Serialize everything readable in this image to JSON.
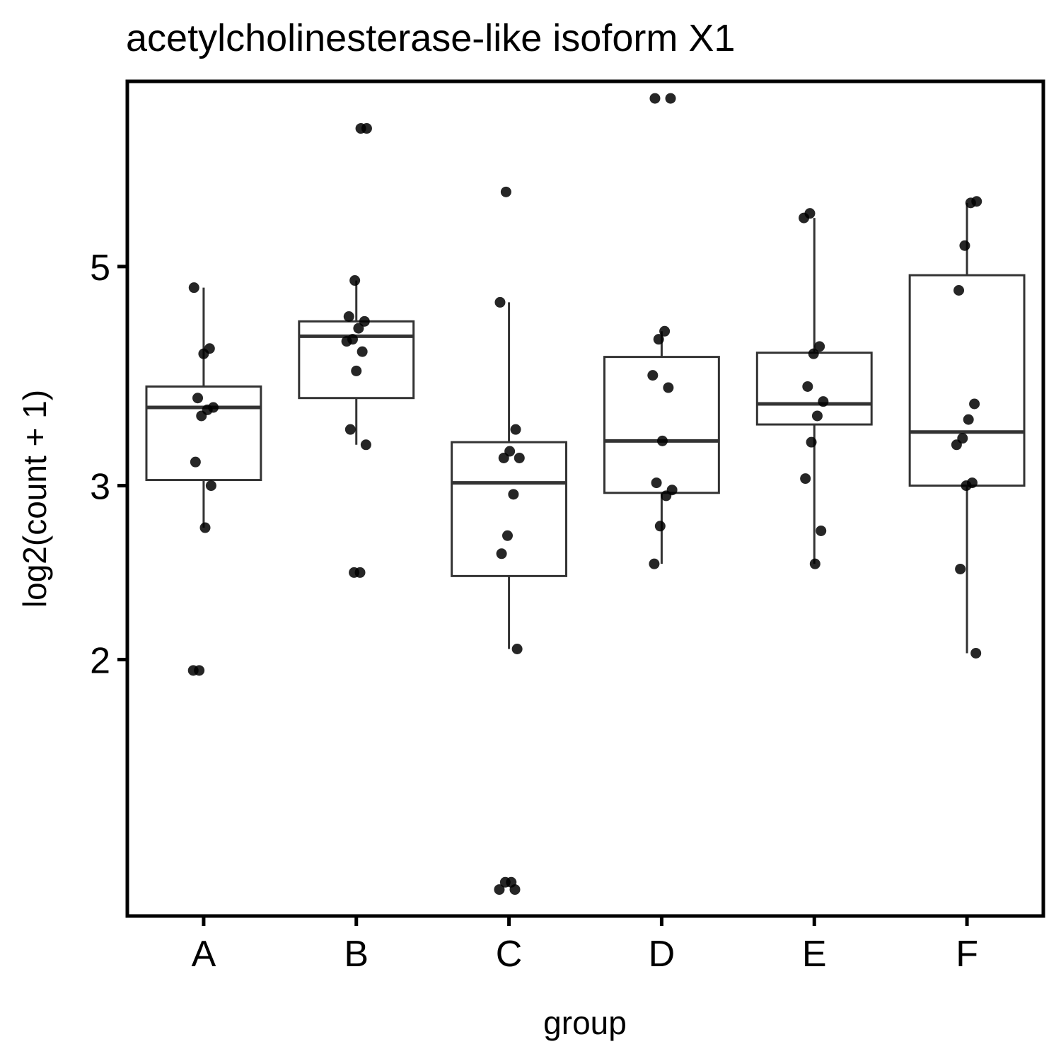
{
  "chart_data": {
    "type": "box",
    "title": "acetylcholinesterase-like isoform X1",
    "xlabel": "group",
    "ylabel": "log2(count + 1)",
    "y_scale": "log2",
    "ylim": [
      1.1,
      7.7
    ],
    "yticks": [
      2,
      3,
      5
    ],
    "grid": false,
    "categories": [
      "A",
      "B",
      "C",
      "D",
      "E",
      "F"
    ],
    "boxes": [
      {
        "group": "A",
        "whisker_low": 2.72,
        "q1": 3.04,
        "median": 3.6,
        "q3": 3.78,
        "whisker_high": 4.76
      },
      {
        "group": "B",
        "whisker_low": 3.3,
        "q1": 3.68,
        "median": 4.25,
        "q3": 4.4,
        "whisker_high": 4.84
      },
      {
        "group": "C",
        "whisker_low": 2.05,
        "q1": 2.43,
        "median": 3.02,
        "q3": 3.32,
        "whisker_high": 4.6
      },
      {
        "group": "D",
        "whisker_low": 2.5,
        "q1": 2.95,
        "median": 3.33,
        "q3": 4.05,
        "whisker_high": 4.3
      },
      {
        "group": "E",
        "whisker_low": 2.5,
        "q1": 3.46,
        "median": 3.63,
        "q3": 4.09,
        "whisker_high": 5.6
      },
      {
        "group": "F",
        "whisker_low": 2.03,
        "q1": 3.0,
        "median": 3.4,
        "q3": 4.9,
        "whisker_high": 5.8
      }
    ],
    "points": [
      {
        "group": "A",
        "y": [
          1.95,
          1.95,
          2.72,
          3.0,
          3.17,
          3.53,
          3.58,
          3.6,
          3.68,
          4.08,
          4.13,
          4.76
        ]
      },
      {
        "group": "B",
        "y": [
          2.45,
          2.45,
          3.3,
          3.42,
          3.92,
          4.1,
          4.2,
          4.22,
          4.33,
          4.4,
          4.45,
          4.84,
          6.9,
          6.9
        ]
      },
      {
        "group": "C",
        "y": [
          1.17,
          1.17,
          1.19,
          1.19,
          2.05,
          2.56,
          2.67,
          2.94,
          3.2,
          3.2,
          3.25,
          3.42,
          4.6,
          5.95
        ]
      },
      {
        "group": "D",
        "y": [
          2.5,
          2.73,
          2.93,
          2.97,
          3.02,
          3.33,
          3.77,
          3.88,
          4.22,
          4.3,
          7.4,
          7.4
        ]
      },
      {
        "group": "E",
        "y": [
          2.5,
          2.7,
          3.05,
          3.32,
          3.53,
          3.65,
          3.78,
          4.08,
          4.15,
          5.6,
          5.66
        ]
      },
      {
        "group": "F",
        "y": [
          2.03,
          2.47,
          3.0,
          3.02,
          3.3,
          3.35,
          3.5,
          3.63,
          4.73,
          5.25,
          5.8,
          5.82
        ]
      }
    ],
    "colors": {
      "box_stroke": "#333333",
      "point": "#000000",
      "panel_border": "#000000",
      "background": "#ffffff"
    }
  }
}
